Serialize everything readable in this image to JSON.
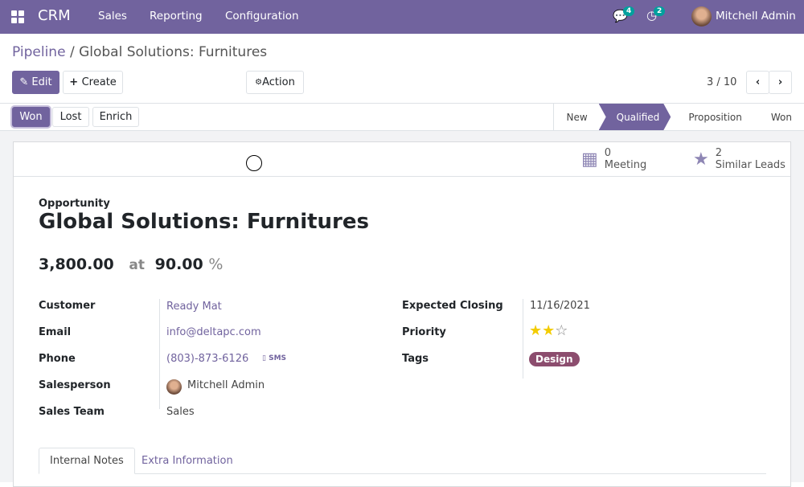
{
  "navbar": {
    "app": "CRM",
    "menu": [
      "Sales",
      "Reporting",
      "Configuration"
    ],
    "messages_count": "4",
    "activities_count": "2",
    "user": "Mitchell Admin",
    "color": "#71639e"
  },
  "breadcrumb": {
    "parent": "Pipeline",
    "separator": "/",
    "current": "Global Solutions: Furnitures"
  },
  "toolbar": {
    "edit": "Edit",
    "create": "Create",
    "action": "Action",
    "pager": "3 / 10"
  },
  "statusbar": {
    "buttons": [
      "Won",
      "Lost",
      "Enrich"
    ],
    "stages": [
      "New",
      "Qualified",
      "Proposition",
      "Won"
    ],
    "active_stage": "Qualified"
  },
  "smart_buttons": [
    {
      "value": "0",
      "label": "Meeting",
      "icon": "calendar-icon"
    },
    {
      "value": "2",
      "label": "Similar Leads",
      "icon": "star-icon"
    }
  ],
  "record": {
    "kind": "Opportunity",
    "name": "Global Solutions: Furnitures",
    "revenue": "3,800.00",
    "at": "at",
    "probability": "90.00",
    "percent": "%"
  },
  "fields_left": [
    {
      "label": "Customer",
      "value": "Ready Mat"
    },
    {
      "label": "Email",
      "value": "info@deltapc.com"
    },
    {
      "label": "Phone",
      "value": "(803)-873-6126",
      "sms": "SMS"
    },
    {
      "label": "Salesperson",
      "value": "Mitchell Admin"
    },
    {
      "label": "Sales Team",
      "value": "Sales"
    }
  ],
  "fields_right": [
    {
      "label": "Expected Closing",
      "value": "11/16/2021"
    },
    {
      "label": "Priority",
      "value": 2,
      "max": 3
    },
    {
      "label": "Tags",
      "value": "Design"
    }
  ],
  "tabs": [
    "Internal Notes",
    "Extra Information"
  ],
  "active_tab": "Internal Notes"
}
